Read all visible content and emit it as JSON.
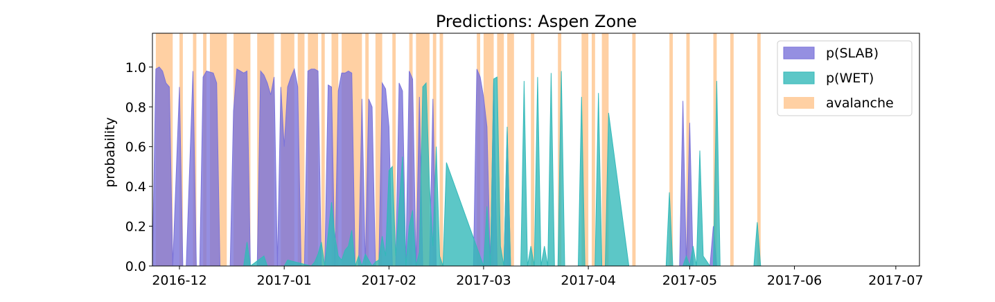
{
  "chart_data": {
    "type": "area",
    "title": "Predictions: Aspen Zone",
    "xlabel": "",
    "ylabel": "probability",
    "xlim": [
      "2016-11-23",
      "2017-07-08"
    ],
    "ylim": [
      0,
      1.17
    ],
    "x_ticks": [
      "2016-12-01",
      "2017-01-01",
      "2017-02-01",
      "2017-03-01",
      "2017-04-01",
      "2017-05-01",
      "2017-06-01",
      "2017-07-01"
    ],
    "x_tick_labels": [
      "2016-12",
      "2017-01",
      "2017-02",
      "2017-03",
      "2017-04",
      "2017-05",
      "2017-06",
      "2017-07"
    ],
    "y_ticks": [
      0.0,
      0.2,
      0.4,
      0.6,
      0.8,
      1.0
    ],
    "y_tick_labels": [
      "0.0",
      "0.2",
      "0.4",
      "0.6",
      "0.8",
      "1.0"
    ],
    "legend_position": "top-right",
    "grid": false,
    "colors": {
      "slab": "#7b73da",
      "wet": "#33b9b9",
      "avalanche": "#ffd0a3"
    },
    "avalanche_days": [
      [
        "2016-11-24",
        "2016-11-29"
      ],
      [
        "2016-12-01",
        "2016-12-02"
      ],
      [
        "2016-12-05",
        "2016-12-06"
      ],
      [
        "2016-12-08",
        "2016-12-09"
      ],
      [
        "2016-12-10",
        "2016-12-15"
      ],
      [
        "2016-12-17",
        "2016-12-22"
      ],
      [
        "2016-12-24",
        "2016-12-29"
      ],
      [
        "2016-12-31",
        "2017-01-04"
      ],
      [
        "2017-01-05",
        "2017-01-07"
      ],
      [
        "2017-01-08",
        "2017-01-11"
      ],
      [
        "2017-01-12",
        "2017-01-13"
      ],
      [
        "2017-01-15",
        "2017-01-17"
      ],
      [
        "2017-01-18",
        "2017-01-24"
      ],
      [
        "2017-01-25",
        "2017-01-26"
      ],
      [
        "2017-01-28",
        "2017-01-30"
      ],
      [
        "2017-02-02",
        "2017-02-03"
      ],
      [
        "2017-02-07",
        "2017-02-08"
      ],
      [
        "2017-02-09",
        "2017-02-13"
      ],
      [
        "2017-02-14",
        "2017-02-15"
      ],
      [
        "2017-02-16",
        "2017-02-17"
      ],
      [
        "2017-02-27",
        "2017-02-28"
      ],
      [
        "2017-03-01",
        "2017-03-04"
      ],
      [
        "2017-03-05",
        "2017-03-07"
      ],
      [
        "2017-03-08",
        "2017-03-10"
      ],
      [
        "2017-03-15",
        "2017-03-16"
      ],
      [
        "2017-03-23",
        "2017-03-24"
      ],
      [
        "2017-03-30",
        "2017-04-01"
      ],
      [
        "2017-04-02",
        "2017-04-03"
      ],
      [
        "2017-04-05",
        "2017-04-07"
      ],
      [
        "2017-04-14",
        "2017-04-15"
      ],
      [
        "2017-04-25",
        "2017-04-26"
      ],
      [
        "2017-04-30",
        "2017-05-01"
      ],
      [
        "2017-05-08",
        "2017-05-09"
      ],
      [
        "2017-05-13",
        "2017-05-14"
      ],
      [
        "2017-05-21",
        "2017-05-22"
      ]
    ],
    "series": [
      {
        "name": "p(SLAB)",
        "x": [
          "2016-11-23",
          "2016-11-24",
          "2016-11-25",
          "2016-11-26",
          "2016-11-27",
          "2016-11-28",
          "2016-11-29",
          "2016-12-01",
          "2016-12-02",
          "2016-12-03",
          "2016-12-05",
          "2016-12-06",
          "2016-12-07",
          "2016-12-08",
          "2016-12-09",
          "2016-12-11",
          "2016-12-12",
          "2016-12-13",
          "2016-12-14",
          "2016-12-15",
          "2016-12-16",
          "2016-12-17",
          "2016-12-18",
          "2016-12-19",
          "2016-12-20",
          "2016-12-21",
          "2016-12-22",
          "2016-12-24",
          "2016-12-25",
          "2016-12-26",
          "2016-12-27",
          "2016-12-28",
          "2016-12-29",
          "2016-12-30",
          "2016-12-31",
          "2017-01-01",
          "2017-01-02",
          "2017-01-03",
          "2017-01-04",
          "2017-01-05",
          "2017-01-06",
          "2017-01-07",
          "2017-01-08",
          "2017-01-09",
          "2017-01-10",
          "2017-01-11",
          "2017-01-12",
          "2017-01-13",
          "2017-01-14",
          "2017-01-15",
          "2017-01-16",
          "2017-01-17",
          "2017-01-18",
          "2017-01-19",
          "2017-01-20",
          "2017-01-21",
          "2017-01-22",
          "2017-01-23",
          "2017-01-24",
          "2017-01-25",
          "2017-01-26",
          "2017-01-27",
          "2017-01-28",
          "2017-01-29",
          "2017-01-30",
          "2017-01-31",
          "2017-02-01",
          "2017-02-02",
          "2017-02-03",
          "2017-02-04",
          "2017-02-05",
          "2017-02-06",
          "2017-02-07",
          "2017-02-08",
          "2017-02-09",
          "2017-02-10",
          "2017-02-11",
          "2017-02-12",
          "2017-02-13",
          "2017-02-14",
          "2017-02-15",
          "2017-02-16",
          "2017-02-17",
          "2017-02-18",
          "2017-02-26",
          "2017-02-27",
          "2017-02-28",
          "2017-03-01",
          "2017-03-02",
          "2017-03-03",
          "2017-03-04",
          "2017-03-05",
          "2017-03-06",
          "2017-03-07",
          "2017-03-08",
          "2017-03-09",
          "2017-03-10",
          "2017-03-13",
          "2017-03-15",
          "2017-03-16",
          "2017-03-17",
          "2017-03-29",
          "2017-03-30",
          "2017-03-31",
          "2017-04-01",
          "2017-04-02",
          "2017-04-03",
          "2017-04-04",
          "2017-04-05",
          "2017-04-06",
          "2017-04-07",
          "2017-04-08",
          "2017-04-24",
          "2017-04-25",
          "2017-04-26",
          "2017-04-27",
          "2017-04-28",
          "2017-04-29",
          "2017-04-30",
          "2017-05-01",
          "2017-05-02",
          "2017-05-07",
          "2017-05-08",
          "2017-05-09",
          "2017-05-10",
          "2017-07-08"
        ],
        "y": [
          0.0,
          0.99,
          1.0,
          0.98,
          0.92,
          0.9,
          0.0,
          0.9,
          0.0,
          0.0,
          0.98,
          0.0,
          0.0,
          0.95,
          0.98,
          0.97,
          0.92,
          0.0,
          0.0,
          0.0,
          0.0,
          0.78,
          0.99,
          0.98,
          0.97,
          0.98,
          0.0,
          0.0,
          0.98,
          0.96,
          0.92,
          0.86,
          0.95,
          0.0,
          0.9,
          0.6,
          0.9,
          0.95,
          0.99,
          0.9,
          0.0,
          0.0,
          0.98,
          0.99,
          0.99,
          0.98,
          0.0,
          0.0,
          0.91,
          0.9,
          0.0,
          0.88,
          0.97,
          0.97,
          0.98,
          0.97,
          0.0,
          0.0,
          0.84,
          0.0,
          0.84,
          0.8,
          0.0,
          0.0,
          0.92,
          0.89,
          0.7,
          0.0,
          0.0,
          0.92,
          0.88,
          0.0,
          0.98,
          0.94,
          0.0,
          0.85,
          0.0,
          0.0,
          0.0,
          0.84,
          0.0,
          0.0,
          0.0,
          0.0,
          0.0,
          0.99,
          0.95,
          0.85,
          0.7,
          0.0,
          0.94,
          0.0,
          0.0,
          0.0,
          0.68,
          0.0,
          0.0,
          0.0,
          0.0,
          0.0,
          0.0,
          0.0,
          0.0,
          0.0,
          0.0,
          0.0,
          0.0,
          0.0,
          0.0,
          0.0,
          0.0,
          0.0,
          0.0,
          0.0,
          0.0,
          0.0,
          0.0,
          0.83,
          0.0,
          0.72,
          0.0,
          0.0,
          0.2,
          0.0,
          0.0,
          0.0
        ]
      },
      {
        "name": "p(WET)",
        "x": [
          "2016-11-23",
          "2016-12-20",
          "2016-12-21",
          "2016-12-22",
          "2016-12-26",
          "2016-12-27",
          "2016-12-28",
          "2017-01-01",
          "2017-01-02",
          "2017-01-09",
          "2017-01-10",
          "2017-01-11",
          "2017-01-12",
          "2017-01-13",
          "2017-01-15",
          "2017-01-16",
          "2017-01-17",
          "2017-01-18",
          "2017-01-19",
          "2017-01-20",
          "2017-01-21",
          "2017-01-22",
          "2017-01-23",
          "2017-01-24",
          "2017-01-25",
          "2017-01-26",
          "2017-01-27",
          "2017-01-28",
          "2017-01-29",
          "2017-01-30",
          "2017-01-31",
          "2017-02-01",
          "2017-02-02",
          "2017-02-03",
          "2017-02-04",
          "2017-02-05",
          "2017-02-06",
          "2017-02-07",
          "2017-02-08",
          "2017-02-09",
          "2017-02-10",
          "2017-02-11",
          "2017-02-12",
          "2017-02-13",
          "2017-02-14",
          "2017-02-15",
          "2017-02-16",
          "2017-02-17",
          "2017-02-18",
          "2017-03-01",
          "2017-03-02",
          "2017-03-03",
          "2017-03-04",
          "2017-03-05",
          "2017-03-06",
          "2017-03-07",
          "2017-03-08",
          "2017-03-09",
          "2017-03-10",
          "2017-03-11",
          "2017-03-12",
          "2017-03-13",
          "2017-03-14",
          "2017-03-15",
          "2017-03-16",
          "2017-03-17",
          "2017-03-18",
          "2017-03-19",
          "2017-03-20",
          "2017-03-21",
          "2017-03-22",
          "2017-03-23",
          "2017-03-24",
          "2017-03-25",
          "2017-03-29",
          "2017-03-30",
          "2017-03-31",
          "2017-04-01",
          "2017-04-02",
          "2017-04-03",
          "2017-04-04",
          "2017-04-05",
          "2017-04-06",
          "2017-04-07",
          "2017-04-13",
          "2017-04-14",
          "2017-04-15",
          "2017-04-24",
          "2017-04-25",
          "2017-04-26",
          "2017-04-29",
          "2017-04-30",
          "2017-05-01",
          "2017-05-02",
          "2017-05-03",
          "2017-05-04",
          "2017-05-05",
          "2017-05-07",
          "2017-05-08",
          "2017-05-09",
          "2017-05-10",
          "2017-05-20",
          "2017-05-21",
          "2017-05-22",
          "2017-07-08"
        ],
        "y": [
          0.0,
          0.0,
          0.12,
          0.0,
          0.05,
          0.0,
          0.0,
          0.0,
          0.03,
          0.0,
          0.02,
          0.06,
          0.12,
          0.0,
          0.32,
          0.15,
          0.05,
          0.03,
          0.08,
          0.1,
          0.18,
          0.0,
          0.05,
          0.0,
          0.06,
          0.03,
          0.0,
          0.02,
          0.03,
          0.15,
          0.05,
          0.48,
          0.5,
          0.05,
          0.3,
          0.55,
          0.0,
          0.2,
          0.28,
          0.0,
          0.07,
          0.9,
          0.92,
          0.4,
          0.1,
          0.6,
          0.05,
          0.0,
          0.52,
          0.0,
          0.3,
          0.0,
          0.94,
          0.95,
          0.1,
          0.0,
          0.7,
          0.0,
          0.0,
          0.0,
          0.0,
          0.93,
          0.0,
          0.1,
          0.0,
          0.95,
          0.0,
          0.1,
          0.0,
          0.97,
          0.0,
          0.0,
          0.98,
          0.0,
          0.0,
          0.85,
          0.0,
          0.0,
          0.0,
          0.0,
          0.87,
          0.0,
          0.0,
          0.77,
          0.0,
          0.0,
          0.0,
          0.0,
          0.37,
          0.0,
          0.0,
          0.05,
          0.0,
          0.1,
          0.0,
          0.58,
          0.05,
          0.0,
          0.0,
          0.93,
          0.0,
          0.0,
          0.22,
          0.0,
          0.0
        ]
      }
    ],
    "legend": [
      {
        "label": "p(SLAB)",
        "key": "slab"
      },
      {
        "label": "p(WET)",
        "key": "wet"
      },
      {
        "label": "avalanche",
        "key": "avalanche"
      }
    ]
  }
}
